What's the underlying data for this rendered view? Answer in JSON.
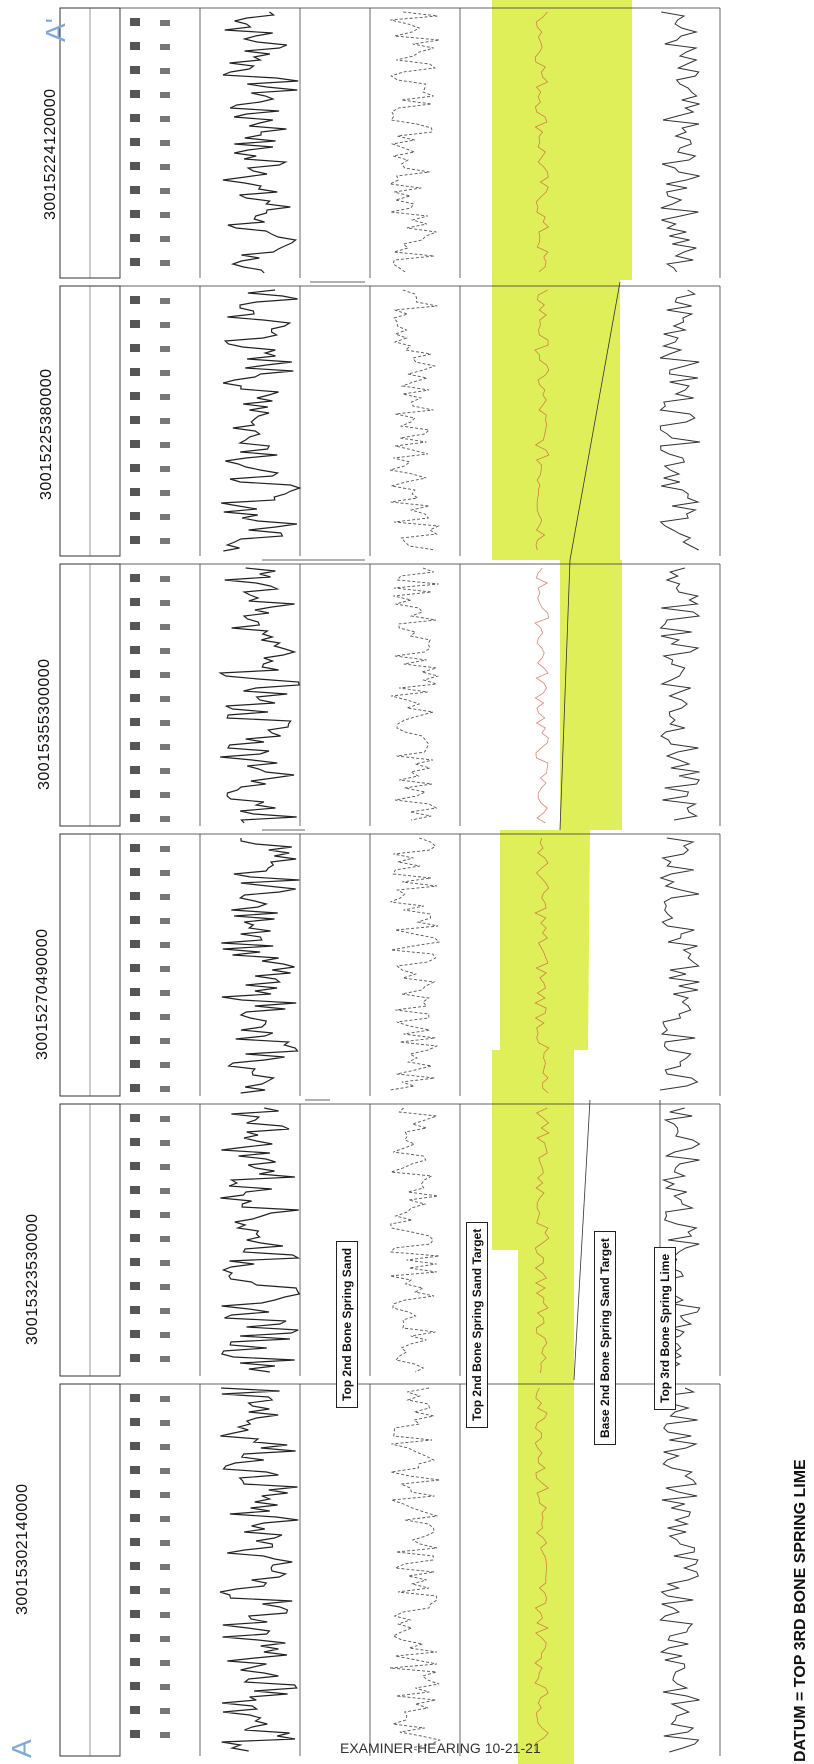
{
  "diagram": {
    "endpoints": {
      "start": "A",
      "end": "A'"
    },
    "wells": [
      {
        "api": "30015224120000"
      },
      {
        "api": "30015225380000"
      },
      {
        "api": "30015355300000"
      },
      {
        "api": "30015270490000"
      },
      {
        "api": "30015323530000"
      },
      {
        "api": "30015302140000"
      }
    ],
    "formation_tops": [
      "Top 2nd Bone Spring Sand",
      "Top 2nd Bone Spring Sand Target",
      "Base 2nd Bone Spring Sand Target",
      "Top 3rd Bone Spring Lime"
    ],
    "datum_label": "DATUM = TOP 3RD BONE SPRING LIME",
    "footer": "EXAMINER HEARING 10-21-21",
    "colors": {
      "highlight": "#d9ec3c",
      "ink": "#222222",
      "endpoint": "#7fa9d6"
    }
  }
}
